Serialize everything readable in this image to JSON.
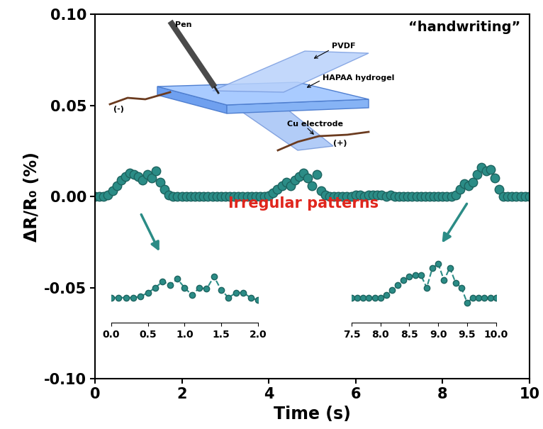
{
  "chart_data": [
    {
      "type": "scatter",
      "xlabel": "Time (s)",
      "ylabel": "ΔR/R₀ (%)",
      "annotations": [
        "“handwriting”",
        "Irregular patterns"
      ],
      "color": "#2b8c86",
      "marker": "o",
      "xlim": [
        0,
        10
      ],
      "ylim": [
        -0.1,
        0.1
      ],
      "xticks": [
        0,
        2,
        4,
        6,
        8,
        10
      ],
      "yticks": [
        {
          "value": -0.1,
          "label": "-0.10"
        },
        {
          "value": -0.05,
          "label": "-0.05"
        },
        {
          "value": 0.0,
          "label": "0.00"
        },
        {
          "value": 0.05,
          "label": "0.05"
        },
        {
          "value": 0.1,
          "label": "0.10"
        }
      ],
      "x": [
        0.0,
        0.1,
        0.2,
        0.3,
        0.4,
        0.5,
        0.6,
        0.7,
        0.8,
        0.9,
        1.0,
        1.1,
        1.2,
        1.3,
        1.4,
        1.5,
        1.6,
        1.7,
        1.8,
        1.9,
        2.0,
        2.1,
        2.2,
        2.3,
        2.4,
        2.5,
        2.6,
        2.7,
        2.8,
        2.9,
        3.0,
        3.1,
        3.2,
        3.3,
        3.4,
        3.5,
        3.6,
        3.7,
        3.8,
        3.9,
        4.0,
        4.1,
        4.2,
        4.3,
        4.4,
        4.5,
        4.6,
        4.7,
        4.8,
        4.9,
        5.0,
        5.1,
        5.2,
        5.3,
        5.4,
        5.5,
        5.6,
        5.7,
        5.8,
        5.9,
        6.0,
        6.1,
        6.2,
        6.3,
        6.4,
        6.5,
        6.6,
        6.7,
        6.8,
        6.9,
        7.0,
        7.1,
        7.2,
        7.3,
        7.4,
        7.5,
        7.6,
        7.7,
        7.8,
        7.9,
        8.0,
        8.1,
        8.2,
        8.3,
        8.4,
        8.5,
        8.6,
        8.7,
        8.8,
        8.9,
        9.0,
        9.1,
        9.2,
        9.3,
        9.4,
        9.5,
        9.6,
        9.7,
        9.8,
        9.9,
        10.0
      ],
      "values": [
        0,
        0,
        0,
        0.001,
        0.003,
        0.006,
        0.009,
        0.011,
        0.013,
        0.012,
        0.011,
        0.009,
        0.012,
        0.01,
        0.014,
        0.008,
        0.004,
        0.001,
        0,
        0,
        0,
        0,
        0,
        0,
        0,
        0,
        0,
        0,
        0,
        0,
        0,
        0,
        0,
        0,
        0,
        0,
        0,
        0,
        0,
        0,
        0.0005,
        0.002,
        0.004,
        0.006,
        0.008,
        0.006,
        0.009,
        0.011,
        0.013,
        0.01,
        0.006,
        0.012,
        0.003,
        0.001,
        0,
        0,
        0,
        0,
        0,
        0,
        0.001,
        0.001,
        0,
        0.001,
        0.001,
        0.001,
        0.001,
        0,
        0.001,
        0,
        0,
        0,
        0,
        0,
        0,
        0,
        0,
        0,
        0,
        0,
        0,
        0,
        0,
        0.001,
        0.004,
        0.007,
        0.006,
        0.008,
        0.012,
        0.016,
        0.014,
        0.015,
        0.01,
        0.004,
        0,
        0,
        0,
        0,
        0,
        0,
        0
      ]
    },
    {
      "type": "line",
      "color": "#2b8c86",
      "marker": "o",
      "line_style": "dashed",
      "tick_labels": "x",
      "xlim": [
        0.0,
        2.0
      ],
      "ylim": [
        -0.01,
        0.017
      ],
      "xticks": [
        0.0,
        0.5,
        1.0,
        1.5,
        2.0
      ],
      "x": [
        0.0,
        0.1,
        0.2,
        0.3,
        0.4,
        0.5,
        0.6,
        0.7,
        0.8,
        0.9,
        1.0,
        1.1,
        1.2,
        1.3,
        1.4,
        1.5,
        1.6,
        1.7,
        1.8,
        1.9,
        2.0
      ],
      "values": [
        0,
        0,
        0,
        0,
        0.0005,
        0.002,
        0.004,
        0.0065,
        0.005,
        0.0075,
        0.004,
        0.001,
        0.004,
        0.0035,
        0.0085,
        0.003,
        0,
        0.002,
        0.002,
        0,
        -0.001
      ]
    },
    {
      "type": "line",
      "color": "#2b8c86",
      "marker": "o",
      "line_style": "dashed",
      "tick_labels": "x",
      "xlim": [
        7.5,
        10.0
      ],
      "ylim": [
        -0.01,
        0.017
      ],
      "xticks": [
        7.5,
        8.0,
        8.5,
        9.0,
        9.5,
        10.0
      ],
      "x": [
        7.5,
        7.6,
        7.7,
        7.8,
        7.9,
        8.0,
        8.1,
        8.2,
        8.3,
        8.4,
        8.5,
        8.6,
        8.7,
        8.8,
        8.9,
        9.0,
        9.1,
        9.2,
        9.3,
        9.4,
        9.5,
        9.6,
        9.7,
        9.8,
        9.9,
        10.0
      ],
      "values": [
        0,
        0,
        0,
        0,
        0,
        0,
        0.001,
        0.003,
        0.005,
        0.007,
        0.0085,
        0.009,
        0.009,
        0.004,
        0.012,
        0.0135,
        0.007,
        0.012,
        0.006,
        0.004,
        -0.002,
        0,
        0,
        0,
        0,
        0
      ]
    }
  ],
  "diagram": {
    "labels": {
      "pen": "Pen",
      "pvdf": "PVDF",
      "hydrogel": "HAPAA hydrogel",
      "electrode": "Cu electrode",
      "negative": "(-)",
      "positive": "(+)"
    }
  }
}
